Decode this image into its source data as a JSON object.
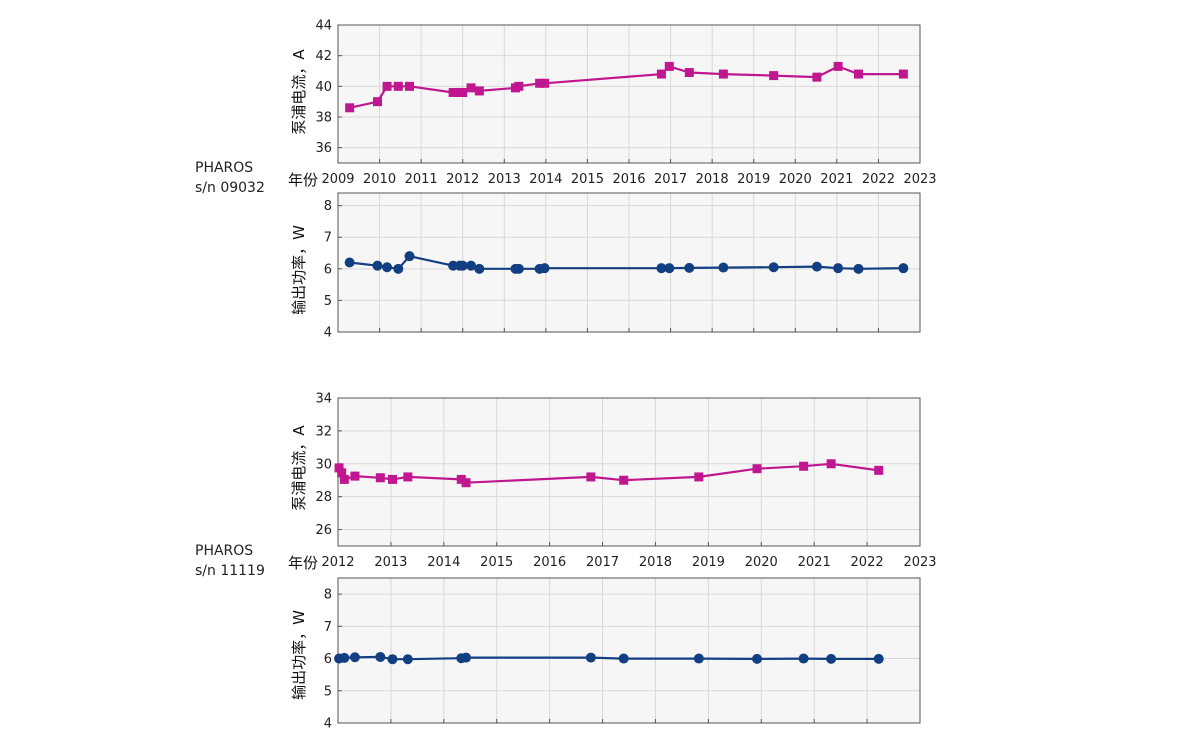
{
  "units": [
    {
      "label_line1": "PHAROS",
      "label_line2": "s/n 09032",
      "xlabel": "年份",
      "x_ticks": [
        2009,
        2010,
        2011,
        2012,
        2013,
        2014,
        2015,
        2016,
        2017,
        2018,
        2019,
        2020,
        2021,
        2022,
        2023
      ],
      "current": {
        "ylabel": "泵浦电流，A",
        "y_ticks": [
          36,
          38,
          40,
          42,
          44
        ],
        "ylim": [
          35,
          44
        ],
        "color": "#c0168f"
      },
      "power": {
        "ylabel": "输出功率，W",
        "y_ticks": [
          4,
          5,
          6,
          7,
          8
        ],
        "ylim": [
          4,
          8.4
        ],
        "color": "#123f82"
      }
    },
    {
      "label_line1": "PHAROS",
      "label_line2": "s/n 11119",
      "xlabel": "年份",
      "x_ticks": [
        2012,
        2013,
        2014,
        2015,
        2016,
        2017,
        2018,
        2019,
        2020,
        2021,
        2022,
        2023
      ],
      "current": {
        "ylabel": "泵浦电流，A",
        "y_ticks": [
          26,
          28,
          30,
          32,
          34
        ],
        "ylim": [
          25,
          34
        ],
        "color": "#c0168f"
      },
      "power": {
        "ylabel": "输出功率，W",
        "y_ticks": [
          4,
          5,
          6,
          7,
          8
        ],
        "ylim": [
          4,
          8.5
        ],
        "color": "#123f82"
      }
    }
  ],
  "chart_data": [
    {
      "type": "line",
      "unit": "PHAROS s/n 09032",
      "xlabel": "年份",
      "ylabel": "泵浦电流，A",
      "xlim": [
        2009,
        2023
      ],
      "ylim": [
        35,
        44
      ],
      "marker": "square",
      "grid": true,
      "points": [
        [
          2009.28,
          38.6
        ],
        [
          2009.95,
          39.0
        ],
        [
          2010.18,
          40.0
        ],
        [
          2010.45,
          40.0
        ],
        [
          2010.72,
          40.0
        ],
        [
          2011.77,
          39.6
        ],
        [
          2011.93,
          39.6
        ],
        [
          2012.0,
          39.6
        ],
        [
          2012.2,
          39.9
        ],
        [
          2012.4,
          39.7
        ],
        [
          2013.27,
          39.9
        ],
        [
          2013.35,
          40.0
        ],
        [
          2013.85,
          40.2
        ],
        [
          2013.97,
          40.2
        ],
        [
          2016.78,
          40.8
        ],
        [
          2016.97,
          41.3
        ],
        [
          2017.45,
          40.9
        ],
        [
          2018.27,
          40.8
        ],
        [
          2019.48,
          40.7
        ],
        [
          2020.52,
          40.6
        ],
        [
          2021.03,
          41.3
        ],
        [
          2021.52,
          40.8
        ],
        [
          2022.6,
          40.8
        ]
      ]
    },
    {
      "type": "line",
      "unit": "PHAROS s/n 09032",
      "xlabel": "",
      "ylabel": "输出功率，W",
      "xlim": [
        2009,
        2023
      ],
      "ylim": [
        4,
        8.4
      ],
      "marker": "circle",
      "grid": true,
      "points": [
        [
          2009.28,
          6.2
        ],
        [
          2009.95,
          6.1
        ],
        [
          2010.18,
          6.05
        ],
        [
          2010.45,
          6.0
        ],
        [
          2010.72,
          6.4
        ],
        [
          2011.77,
          6.1
        ],
        [
          2011.93,
          6.1
        ],
        [
          2012.0,
          6.1
        ],
        [
          2012.2,
          6.1
        ],
        [
          2012.4,
          6.0
        ],
        [
          2013.27,
          6.0
        ],
        [
          2013.35,
          6.0
        ],
        [
          2013.85,
          6.0
        ],
        [
          2013.97,
          6.02
        ],
        [
          2016.78,
          6.02
        ],
        [
          2016.97,
          6.02
        ],
        [
          2017.45,
          6.03
        ],
        [
          2018.27,
          6.04
        ],
        [
          2019.48,
          6.05
        ],
        [
          2020.52,
          6.07
        ],
        [
          2021.03,
          6.02
        ],
        [
          2021.52,
          6.0
        ],
        [
          2022.6,
          6.02
        ]
      ]
    },
    {
      "type": "line",
      "unit": "PHAROS s/n 11119",
      "xlabel": "年份",
      "ylabel": "泵浦电流，A",
      "xlim": [
        2012,
        2023
      ],
      "ylim": [
        25,
        34
      ],
      "marker": "square",
      "grid": true,
      "points": [
        [
          2012.02,
          29.75
        ],
        [
          2012.07,
          29.45
        ],
        [
          2012.12,
          29.05
        ],
        [
          2012.32,
          29.25
        ],
        [
          2012.8,
          29.15
        ],
        [
          2013.03,
          29.05
        ],
        [
          2013.32,
          29.2
        ],
        [
          2014.33,
          29.05
        ],
        [
          2014.42,
          28.85
        ],
        [
          2016.78,
          29.2
        ],
        [
          2017.4,
          29.0
        ],
        [
          2018.82,
          29.2
        ],
        [
          2019.92,
          29.7
        ],
        [
          2020.8,
          29.85
        ],
        [
          2021.32,
          30.0
        ],
        [
          2022.22,
          29.6
        ]
      ]
    },
    {
      "type": "line",
      "unit": "PHAROS s/n 11119",
      "xlabel": "",
      "ylabel": "输出功率，W",
      "xlim": [
        2012,
        2023
      ],
      "ylim": [
        4,
        8.5
      ],
      "marker": "circle",
      "grid": true,
      "points": [
        [
          2012.02,
          6.0
        ],
        [
          2012.12,
          6.02
        ],
        [
          2012.32,
          6.04
        ],
        [
          2012.8,
          6.05
        ],
        [
          2013.03,
          5.98
        ],
        [
          2013.32,
          5.98
        ],
        [
          2014.33,
          6.01
        ],
        [
          2014.42,
          6.03
        ],
        [
          2016.78,
          6.03
        ],
        [
          2017.4,
          6.0
        ],
        [
          2018.82,
          6.0
        ],
        [
          2019.92,
          5.99
        ],
        [
          2020.8,
          6.0
        ],
        [
          2021.32,
          5.99
        ],
        [
          2022.22,
          5.99
        ]
      ]
    }
  ]
}
